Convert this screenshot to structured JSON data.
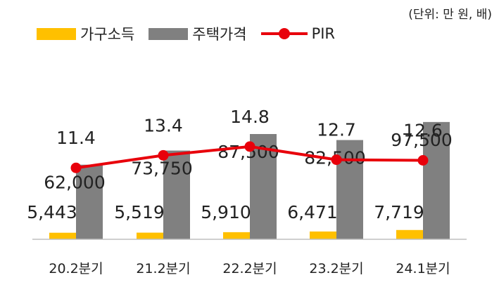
{
  "unit_note": "(단위: 만 원, 배)",
  "colors": {
    "income": "#FFC000",
    "price": "#808080",
    "pir": "#E8000B",
    "axis": "#BFBFBF"
  },
  "chart_data": {
    "type": "bar",
    "categories": [
      "20.2분기",
      "21.2분기",
      "22.2분기",
      "23.2분기",
      "24.1분기"
    ],
    "series": [
      {
        "name": "가구소득",
        "type": "bar",
        "axis": "left",
        "values": [
          5443,
          5519,
          5910,
          6471,
          7719
        ],
        "labels": [
          "5,443",
          "5,519",
          "5,910",
          "6,471",
          "7,719"
        ]
      },
      {
        "name": "주택가격",
        "type": "bar",
        "axis": "left",
        "values": [
          62000,
          73750,
          87500,
          82500,
          97500
        ],
        "labels": [
          "62,000",
          "73,750",
          "87,500",
          "82,500",
          "97,500"
        ]
      },
      {
        "name": "PIR",
        "type": "line",
        "axis": "right",
        "values": [
          11.4,
          13.4,
          14.8,
          12.7,
          12.6
        ],
        "labels": [
          "11.4",
          "13.4",
          "14.8",
          "12.7",
          "12.6"
        ]
      }
    ],
    "ylim": [
      0,
      140000
    ],
    "y2lim": [
      0,
      28
    ],
    "legend": "top-left",
    "grid": false
  }
}
